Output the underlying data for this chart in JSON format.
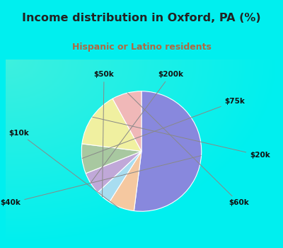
{
  "title": "Income distribution in Oxford, PA (%)",
  "subtitle": "Hispanic or Latino residents",
  "labels": [
    "$40k",
    "$10k",
    "$50k",
    "$200k",
    "$75k",
    "$20k",
    "$60k"
  ],
  "sizes": [
    52,
    7,
    4,
    6,
    8,
    15,
    8
  ],
  "colors": [
    "#8888dd",
    "#f5c8a0",
    "#a8ddf0",
    "#c0a8d8",
    "#a8c8a0",
    "#f0f0a0",
    "#f0b8b8"
  ],
  "bg_top": "#00efef",
  "bg_chart": "#dff5e8",
  "title_color": "#222222",
  "subtitle_color": "#b06840",
  "startangle": 90,
  "label_color": "#111111"
}
